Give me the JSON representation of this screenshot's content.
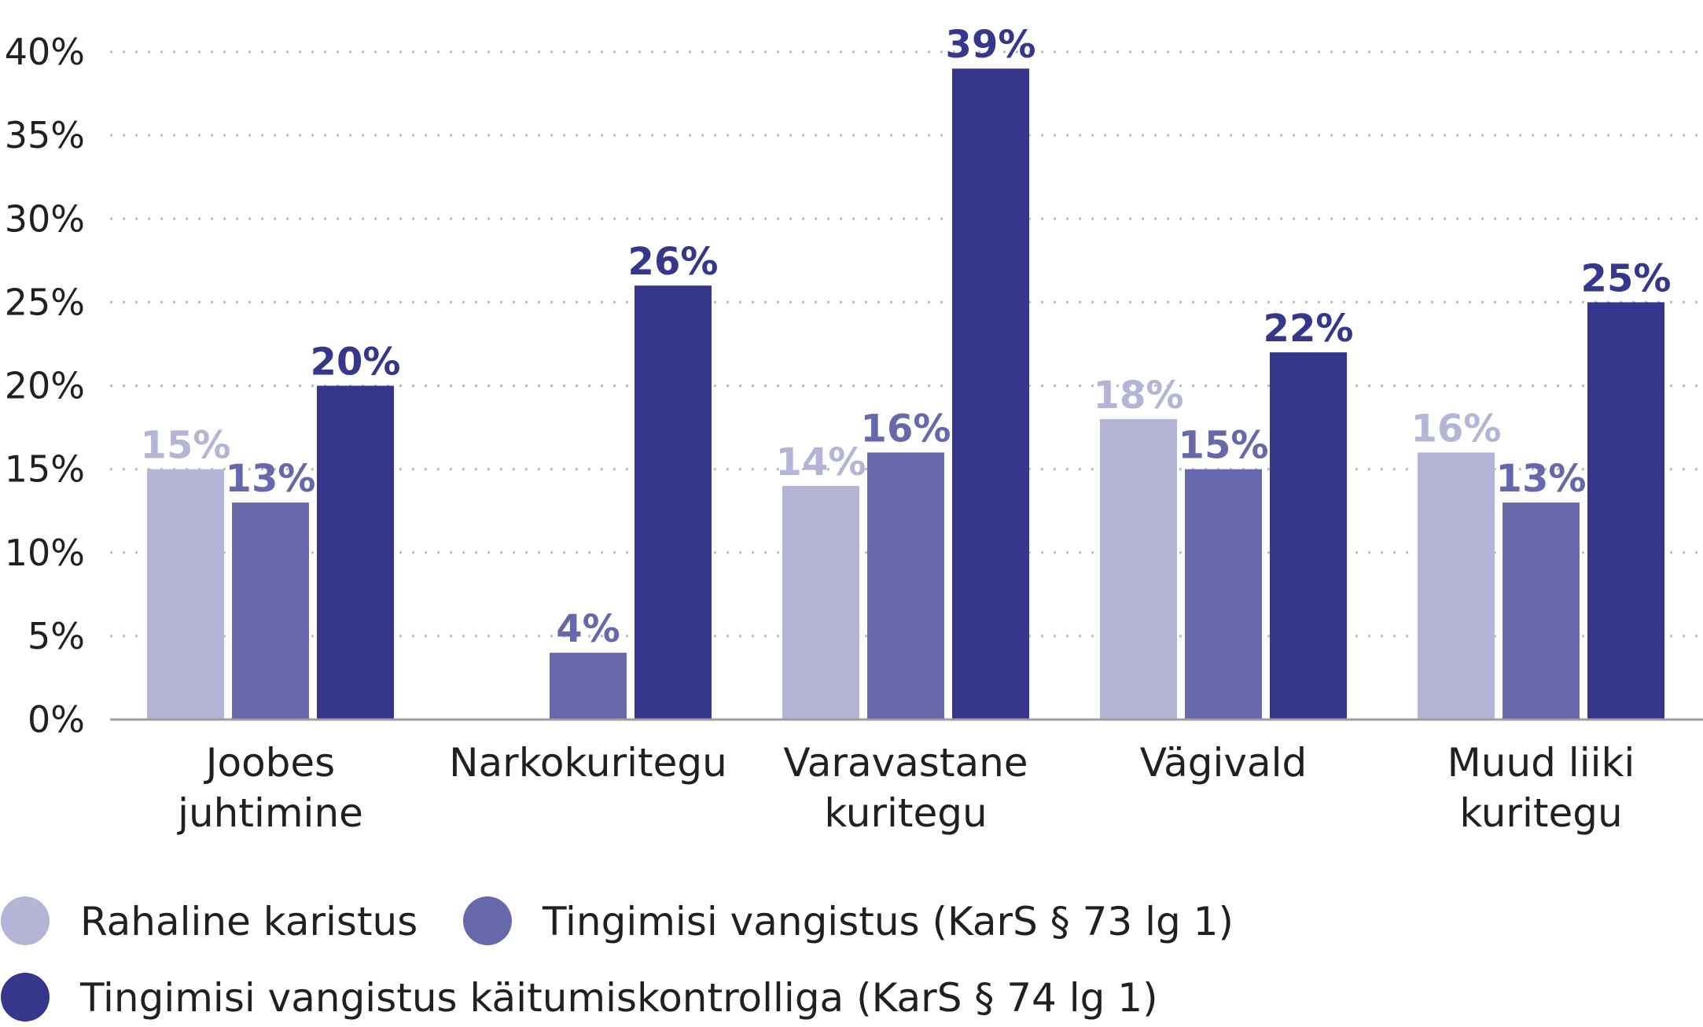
{
  "chart_data": {
    "type": "bar",
    "categories": [
      [
        "Joobes",
        "juhtimine"
      ],
      [
        "Narkokuritegu"
      ],
      [
        "Varavastane",
        "kuritegu"
      ],
      [
        "Vägivald"
      ],
      [
        "Muud liiki",
        "kuritegu"
      ]
    ],
    "series": [
      {
        "name": "Rahaline karistus",
        "color": "#b4b4d6",
        "values": [
          15,
          null,
          14,
          18,
          16
        ],
        "labels": [
          "15%",
          "",
          "14%",
          "18%",
          "16%"
        ]
      },
      {
        "name": "Tingimisi vangistus (KarS § 73 lg 1)",
        "color": "#6767ab",
        "values": [
          13,
          4,
          16,
          15,
          13
        ],
        "labels": [
          "13%",
          "4%",
          "16%",
          "15%",
          "13%"
        ]
      },
      {
        "name": "Tingimisi vangistus käitumiskontrolliga (KarS § 74 lg 1)",
        "color": "#35368c",
        "values": [
          20,
          26,
          39,
          22,
          25
        ],
        "labels": [
          "20%",
          "26%",
          "39%",
          "22%",
          "25%"
        ]
      }
    ],
    "ylim": [
      0,
      40
    ],
    "yticks": [
      0,
      5,
      10,
      15,
      20,
      25,
      30,
      35,
      40
    ],
    "ytick_labels": [
      "0%",
      "5%",
      "10%",
      "15%",
      "20%",
      "25%",
      "30%",
      "35%",
      "40%"
    ],
    "grid": true,
    "legend_position": "bottom-left",
    "title": "",
    "xlabel": "",
    "ylabel": ""
  }
}
